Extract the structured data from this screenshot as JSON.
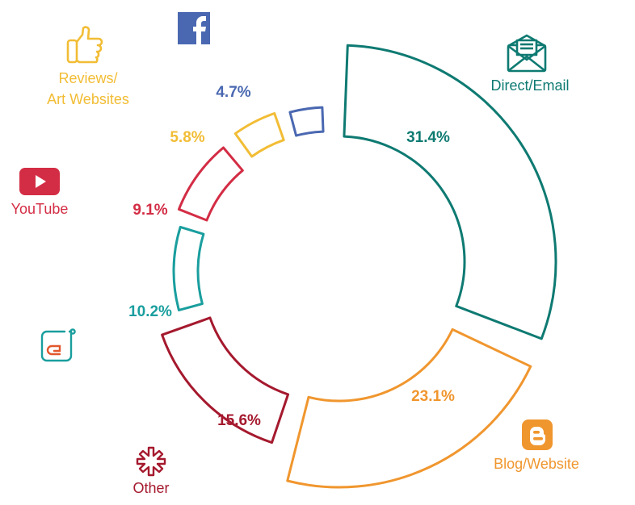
{
  "chart_data": {
    "type": "pie",
    "style": "donut",
    "series": [
      {
        "label": "Direct/Email",
        "value": 31.4,
        "value_label": "31.4%",
        "color": "#0e7a72",
        "icon": "envelope-icon"
      },
      {
        "label": "Blog/Website",
        "value": 23.1,
        "value_label": "23.1%",
        "color": "#f0962e",
        "icon": "blogger-icon"
      },
      {
        "label": "Other",
        "value": 15.6,
        "value_label": "15.6%",
        "color": "#a5192e",
        "icon": "asterisk-flower-icon"
      },
      {
        "label": "",
        "value": 10.2,
        "value_label": "10.2%",
        "color": "#1a9e9e",
        "icon": "app-logo-icon"
      },
      {
        "label": "YouTube",
        "value": 9.1,
        "value_label": "9.1%",
        "color": "#d32d45",
        "icon": "youtube-icon"
      },
      {
        "label": "Reviews/ Art Websites",
        "label_lines": [
          "Reviews/",
          "Art Websites"
        ],
        "value": 5.8,
        "value_label": "5.8%",
        "color": "#f2bd35",
        "icon": "thumbs-up-icon"
      },
      {
        "label": "",
        "value": 4.7,
        "value_label": "4.7%",
        "color": "#4a68b1",
        "icon": "facebook-icon"
      }
    ]
  }
}
